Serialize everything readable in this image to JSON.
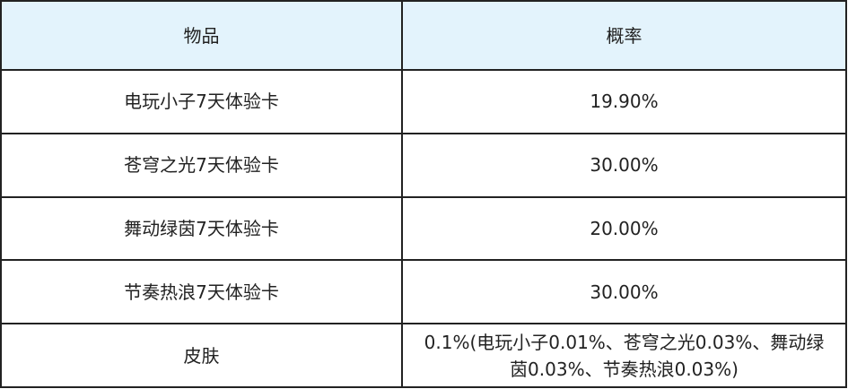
{
  "table": {
    "headers": [
      "物品",
      "概率"
    ],
    "rows": [
      [
        "电玩小子7天体验卡",
        "19.90%"
      ],
      [
        "苍穹之光7天体验卡",
        "30.00%"
      ],
      [
        "舞动绿茵7天体验卡",
        "20.00%"
      ],
      [
        "节奏热浪7天体验卡",
        "30.00%"
      ],
      [
        "皮肤",
        "0.1%(电玩小子0.01%、苍穹之光0.03%、舞动绿茵0.03%、节奏热浪0.03%)"
      ]
    ]
  },
  "colors": {
    "header_bg": "#e3f3fc",
    "border": "#222222"
  }
}
